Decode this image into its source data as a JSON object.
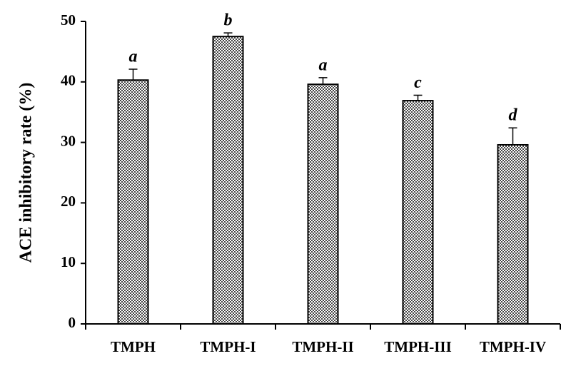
{
  "chart_data": {
    "type": "bar",
    "y_label": "ACE inhibitory rate (%)",
    "categories": [
      "TMPH",
      "TMPH-I",
      "TMPH-II",
      "TMPH-III",
      "TMPH-IV"
    ],
    "values": [
      40.3,
      47.5,
      39.6,
      36.9,
      29.6
    ],
    "errors": [
      1.8,
      0.6,
      1.1,
      0.9,
      2.8
    ],
    "significance_letters": [
      "a",
      "b",
      "a",
      "c",
      "d"
    ],
    "color": "#555555",
    "ylim": [
      0,
      50
    ],
    "yticks": [
      0,
      10,
      20,
      30,
      40,
      50
    ],
    "grid": false
  }
}
